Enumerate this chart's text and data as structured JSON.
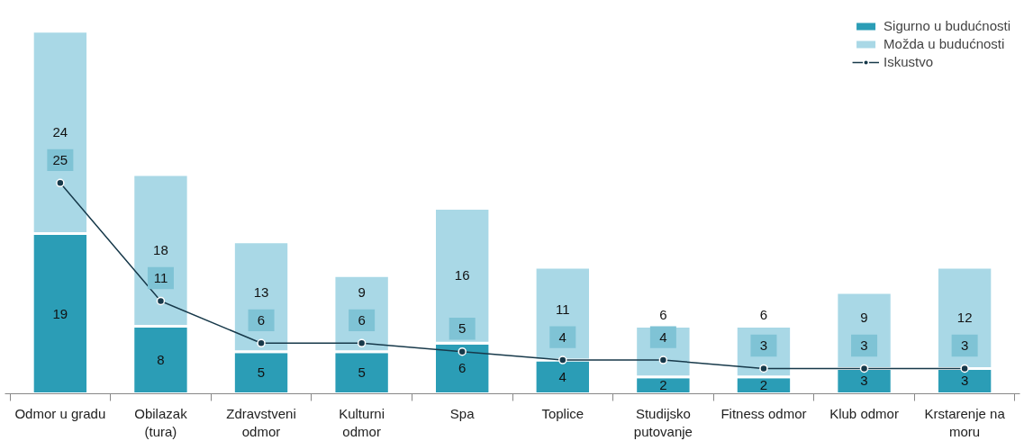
{
  "chart_data": {
    "type": "bar",
    "stacked": true,
    "data_labels": true,
    "grid": false,
    "legend": "top right",
    "categories": [
      "Odmor u gradu",
      "Obilazak (tura)",
      "Zdravstveni odmor",
      "Kulturni odmor",
      "Spa",
      "Toplice",
      "Studijsko putovanje",
      "Fitness odmor",
      "Klub odmor",
      "Krstarenje na moru"
    ],
    "series": [
      {
        "name": "Sigurno u budućnosti",
        "color": "#2b9db6",
        "values": [
          19,
          8,
          5,
          5,
          6,
          4,
          2,
          2,
          3,
          3
        ]
      },
      {
        "name": "Možda u budućnosti",
        "color": "#a9d8e6",
        "values": [
          24,
          18,
          13,
          9,
          16,
          11,
          6,
          6,
          9,
          12
        ]
      },
      {
        "name": "Iskustvo",
        "type": "line",
        "color": "#17394a",
        "marker": "circle",
        "line_style": "solid",
        "values": [
          25,
          11,
          6,
          6,
          5,
          4,
          4,
          3,
          3,
          3
        ]
      }
    ]
  }
}
